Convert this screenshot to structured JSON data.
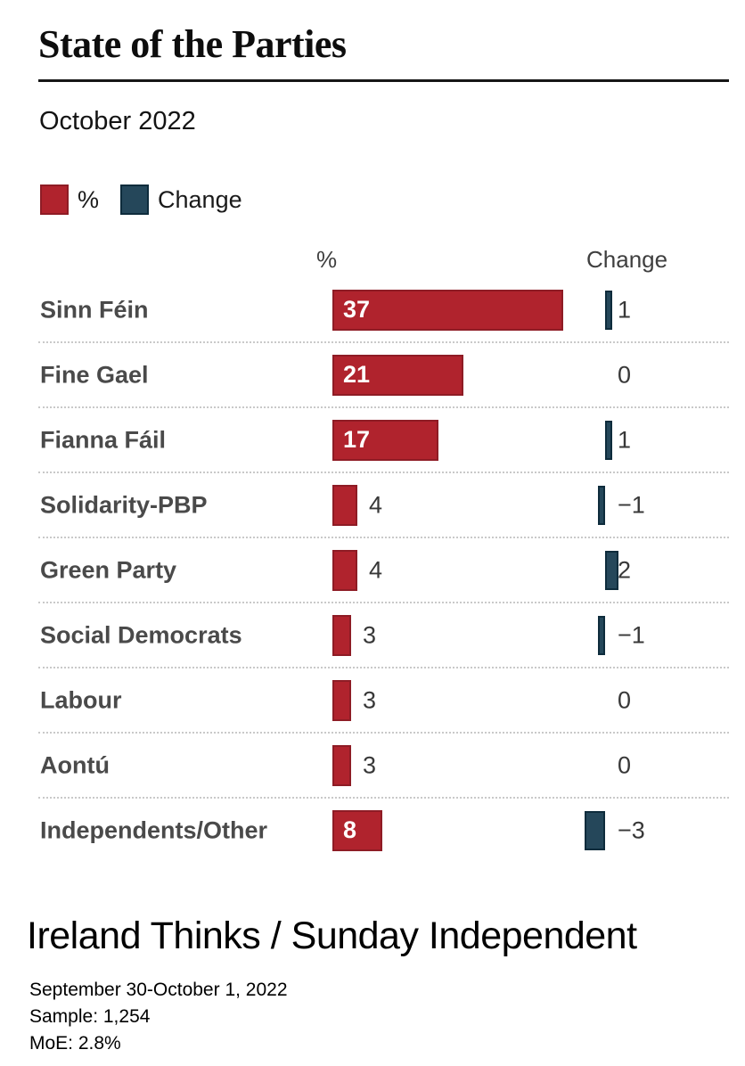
{
  "header": {
    "title": "State of the Parties",
    "subtitle": "October 2022"
  },
  "legend": [
    {
      "label": "%",
      "color": "#b0232d"
    },
    {
      "label": "Change",
      "color": "#25475a"
    }
  ],
  "columns": {
    "value_header": "%",
    "change_header": "Change"
  },
  "colors": {
    "value_bar": "#b0232d",
    "value_bar_border": "#8e1c25",
    "change_bar": "#25475a",
    "change_bar_border": "#0e2c3c"
  },
  "chart_data": {
    "type": "bar",
    "title": "State of the Parties",
    "subtitle": "October 2022",
    "orientation": "horizontal",
    "legend_position": "top",
    "grid": "dotted-row-separators",
    "categories": [
      "Sinn Féin",
      "Fine Gael",
      "Fianna Fáil",
      "Solidarity-PBP",
      "Green Party",
      "Social Democrats",
      "Labour",
      "Aontú",
      "Independents/Other"
    ],
    "series": [
      {
        "name": "%",
        "values": [
          37,
          21,
          17,
          4,
          4,
          3,
          3,
          3,
          8
        ]
      },
      {
        "name": "Change",
        "values": [
          1,
          0,
          1,
          -1,
          2,
          -1,
          0,
          0,
          -3
        ]
      }
    ],
    "value_axis_range": [
      0,
      37
    ],
    "change_axis_range": [
      -3,
      2
    ]
  },
  "footer": {
    "source": "Ireland Thinks / Sunday Independent",
    "dates": "September 30-October 1, 2022",
    "sample": "Sample: 1,254",
    "moe": "MoE: 2.8%"
  }
}
